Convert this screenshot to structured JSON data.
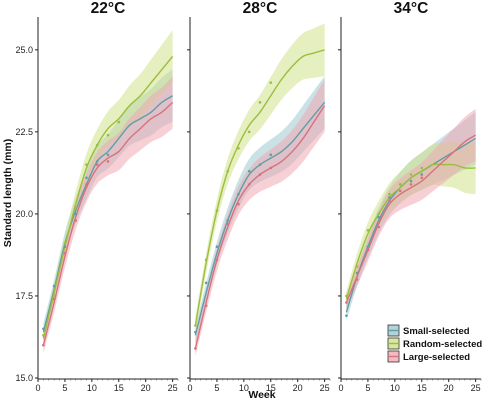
{
  "chart_data": {
    "type": "line",
    "panels": [
      {
        "title": "22°C",
        "x": [
          1,
          3,
          5,
          7,
          9,
          11,
          13,
          15,
          17,
          19,
          21,
          23,
          25
        ],
        "series": [
          {
            "name": "Small-selected",
            "values": [
              16.4,
              17.7,
              19.1,
              20.1,
              20.9,
              21.6,
              21.9,
              22.3,
              22.7,
              22.9,
              23.1,
              23.4,
              23.6
            ]
          },
          {
            "name": "Random-selected",
            "values": [
              16.2,
              17.6,
              19.0,
              20.3,
              21.4,
              22.1,
              22.6,
              22.9,
              23.3,
              23.6,
              24.0,
              24.4,
              24.8
            ]
          },
          {
            "name": "Large-selected",
            "values": [
              16.0,
              17.3,
              18.7,
              19.9,
              20.8,
              21.4,
              21.7,
              21.9,
              22.3,
              22.6,
              22.9,
              23.1,
              23.4
            ]
          }
        ],
        "points": [
          {
            "series": "Small-selected",
            "x": [
              1,
              3,
              5,
              7,
              9,
              11,
              13
            ],
            "y": [
              16.5,
              17.8,
              19.0,
              20.0,
              21.1,
              21.6,
              21.8
            ]
          },
          {
            "series": "Random-selected",
            "x": [
              1,
              3,
              5,
              7,
              9,
              11,
              13,
              15
            ],
            "y": [
              16.3,
              17.5,
              19.1,
              20.2,
              21.5,
              22.1,
              22.4,
              22.8
            ]
          },
          {
            "series": "Large-selected",
            "x": [
              1,
              3,
              5,
              7,
              9,
              11,
              13
            ],
            "y": [
              16.0,
              17.4,
              18.8,
              19.8,
              20.9,
              21.5,
              21.6
            ]
          }
        ]
      },
      {
        "title": "28°C",
        "x": [
          1,
          3,
          5,
          7,
          9,
          11,
          13,
          15,
          17,
          19,
          21,
          23,
          25
        ],
        "series": [
          {
            "name": "Small-selected",
            "values": [
              16.3,
              17.6,
              18.8,
              19.8,
              20.6,
              21.2,
              21.5,
              21.7,
              21.9,
              22.2,
              22.6,
              23.0,
              23.4
            ]
          },
          {
            "name": "Random-selected",
            "values": [
              16.6,
              18.5,
              20.1,
              21.3,
              22.1,
              22.7,
              23.1,
              23.6,
              24.1,
              24.5,
              24.8,
              24.9,
              25.0
            ]
          },
          {
            "name": "Large-selected",
            "values": [
              15.9,
              17.3,
              18.6,
              19.6,
              20.4,
              20.9,
              21.2,
              21.4,
              21.6,
              21.9,
              22.3,
              22.8,
              23.3
            ]
          }
        ],
        "points": [
          {
            "series": "Small-selected",
            "x": [
              1,
              3,
              5,
              7,
              9,
              11,
              13,
              15
            ],
            "y": [
              16.4,
              17.9,
              19.0,
              19.8,
              20.6,
              21.3,
              21.5,
              21.8
            ]
          },
          {
            "series": "Random-selected",
            "x": [
              1,
              3,
              5,
              7,
              9,
              11,
              13,
              15
            ],
            "y": [
              16.6,
              18.6,
              20.1,
              21.3,
              22.0,
              22.5,
              23.4,
              24.0
            ]
          },
          {
            "series": "Large-selected",
            "x": [
              1,
              3,
              5,
              7,
              9,
              11,
              13,
              15
            ],
            "y": [
              15.9,
              17.2,
              18.6,
              19.7,
              20.3,
              20.9,
              21.2,
              21.4
            ]
          }
        ]
      },
      {
        "title": "34°C",
        "x": [
          1,
          3,
          5,
          7,
          9,
          11,
          13,
          15,
          17,
          19,
          21,
          23,
          25
        ],
        "series": [
          {
            "name": "Small-selected",
            "values": [
              17.0,
              18.1,
              19.0,
              19.8,
              20.4,
              20.8,
              21.1,
              21.3,
              21.5,
              21.7,
              21.9,
              22.1,
              22.3
            ]
          },
          {
            "name": "Random-selected",
            "values": [
              17.4,
              18.5,
              19.4,
              20.0,
              20.5,
              20.8,
              21.1,
              21.3,
              21.5,
              21.5,
              21.5,
              21.4,
              21.4
            ]
          },
          {
            "name": "Large-selected",
            "values": [
              17.3,
              18.1,
              18.9,
              19.7,
              20.3,
              20.6,
              20.8,
              21.0,
              21.3,
              21.6,
              21.9,
              22.2,
              22.4
            ]
          }
        ],
        "points": [
          {
            "series": "Small-selected",
            "x": [
              1,
              3,
              5,
              7,
              9,
              11,
              13,
              15
            ],
            "y": [
              16.9,
              18.2,
              19.0,
              19.9,
              20.5,
              20.9,
              21.0,
              21.2
            ]
          },
          {
            "series": "Random-selected",
            "x": [
              1,
              3,
              5,
              7,
              9,
              11,
              13,
              15
            ],
            "y": [
              17.5,
              18.4,
              19.5,
              20.0,
              20.6,
              20.9,
              21.2,
              21.4
            ]
          },
          {
            "series": "Large-selected",
            "x": [
              1,
              3,
              5,
              7,
              9,
              11,
              13,
              15
            ],
            "y": [
              17.3,
              18.0,
              18.9,
              19.6,
              20.4,
              20.7,
              20.9,
              21.1
            ]
          }
        ]
      }
    ],
    "xlabel": "Week",
    "ylabel": "Standard length (mm)",
    "xlim": [
      0,
      26
    ],
    "ylim": [
      15,
      26
    ],
    "xticks": [
      0,
      5,
      10,
      15,
      20,
      25
    ],
    "yticks": [
      15.0,
      17.5,
      20.0,
      22.5,
      25.0
    ],
    "ytick_labels": [
      "15.0",
      "17.5",
      "20.0",
      "22.5",
      "25.0"
    ],
    "band_halfwidth_early": 0.25,
    "band_halfwidth_late": 0.8,
    "grid": false,
    "legend": {
      "placement": "bottom-right",
      "entries": [
        "Small-selected",
        "Random-selected",
        "Large-selected"
      ]
    },
    "colors": {
      "Small-selected": "#5f9ea6",
      "Random-selected": "#9bbe3c",
      "Large-selected": "#d9707e"
    },
    "band_colors": {
      "Small-selected": "#9ec8cf",
      "Random-selected": "#cfe28a",
      "Large-selected": "#f0a9b2"
    }
  }
}
